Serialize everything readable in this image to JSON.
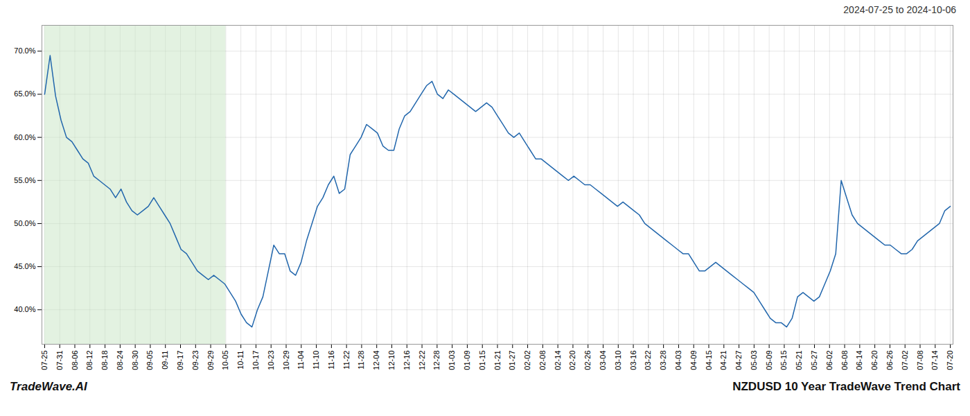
{
  "chart_data": {
    "type": "line",
    "title": "2024-07-25 to 2024-10-06",
    "annotations": [
      "TradeWave.AI",
      "NZDUSD 10 Year TradeWave Trend Chart"
    ],
    "x": [
      0,
      1,
      2,
      3,
      4,
      5,
      6,
      7,
      8,
      9,
      10,
      11,
      12,
      13,
      14,
      15,
      16,
      17,
      18,
      19,
      20,
      21,
      22,
      23,
      24,
      25,
      26,
      27,
      28,
      29,
      30,
      31,
      32,
      33,
      34,
      35,
      36,
      37,
      38,
      39,
      40,
      41,
      42,
      43,
      44,
      45,
      46,
      47,
      48,
      49,
      50,
      51,
      52,
      53,
      54,
      55,
      56,
      57,
      58,
      59,
      60,
      61,
      62,
      63,
      64,
      65,
      66,
      67,
      68,
      69,
      70,
      71,
      72,
      73,
      74,
      75,
      76,
      77,
      78,
      79,
      80,
      81,
      82,
      83,
      84,
      85,
      86,
      87,
      88,
      89,
      90,
      91,
      92,
      93,
      94,
      95,
      96,
      97,
      98,
      99,
      100,
      101,
      102,
      103,
      104,
      105,
      106,
      107,
      108,
      109,
      110,
      111,
      112,
      113,
      114,
      115,
      116,
      117,
      118,
      119,
      120,
      121,
      122,
      123,
      124,
      125,
      126,
      127,
      128,
      129,
      130,
      131,
      132,
      133,
      134,
      135,
      136,
      137,
      138,
      139,
      140,
      141,
      142,
      143,
      144,
      145,
      146,
      147,
      148,
      149,
      150,
      151,
      152,
      153,
      154,
      155,
      156,
      157,
      158,
      159,
      160,
      161,
      162,
      163,
      164,
      165,
      166
    ],
    "values": [
      65.0,
      69.5,
      64.8,
      62.0,
      60.0,
      59.5,
      58.5,
      57.5,
      57.0,
      55.5,
      55.0,
      54.5,
      54.0,
      53.0,
      54.0,
      52.5,
      51.5,
      51.0,
      51.5,
      52.0,
      53.0,
      52.0,
      51.0,
      50.0,
      48.5,
      47.0,
      46.5,
      45.5,
      44.5,
      44.0,
      43.5,
      44.0,
      43.5,
      43.0,
      42.0,
      41.0,
      39.5,
      38.5,
      38.0,
      40.0,
      41.5,
      44.5,
      47.5,
      46.5,
      46.5,
      44.5,
      44.0,
      45.5,
      48.0,
      50.0,
      52.0,
      53.0,
      54.5,
      55.5,
      53.5,
      54.0,
      58.0,
      59.0,
      60.0,
      61.5,
      61.0,
      60.5,
      59.0,
      58.5,
      58.5,
      61.0,
      62.5,
      63.0,
      64.0,
      65.0,
      66.0,
      66.5,
      65.0,
      64.5,
      65.5,
      65.0,
      64.5,
      64.0,
      63.5,
      63.0,
      63.5,
      64.0,
      63.5,
      62.5,
      61.5,
      60.5,
      60.0,
      60.5,
      59.5,
      58.5,
      57.5,
      57.5,
      57.0,
      56.5,
      56.0,
      55.5,
      55.0,
      55.5,
      55.0,
      54.5,
      54.5,
      54.0,
      53.5,
      53.0,
      52.5,
      52.0,
      52.5,
      52.0,
      51.5,
      51.0,
      50.0,
      49.5,
      49.0,
      48.5,
      48.0,
      47.5,
      47.0,
      46.5,
      46.5,
      45.5,
      44.5,
      44.5,
      45.0,
      45.5,
      45.0,
      44.5,
      44.0,
      43.5,
      43.0,
      42.5,
      42.0,
      41.0,
      40.0,
      39.0,
      38.5,
      38.5,
      38.0,
      39.0,
      41.5,
      42.0,
      41.5,
      41.0,
      41.5,
      43.0,
      44.5,
      46.5,
      55.0,
      53.0,
      51.0,
      50.0,
      49.5,
      49.0,
      48.5,
      48.0,
      47.5,
      47.5,
      47.0,
      46.5,
      46.5,
      47.0,
      48.0,
      48.5,
      49.0,
      49.5,
      50.0,
      51.5,
      52.0
    ],
    "color": "#2166ac",
    "shade": {
      "x": [
        0,
        33.2
      ],
      "color": "#c8e6c4"
    },
    "xlim": [
      -0.5,
      166.5
    ],
    "xticks": [
      {
        "value": 0,
        "label": "07-25"
      },
      {
        "value": 2.7667,
        "label": "07-31"
      },
      {
        "value": 5.5333,
        "label": "08-06"
      },
      {
        "value": 8.3,
        "label": "08-12"
      },
      {
        "value": 11.0667,
        "label": "08-18"
      },
      {
        "value": 13.8333,
        "label": "08-24"
      },
      {
        "value": 16.6,
        "label": "08-30"
      },
      {
        "value": 19.3667,
        "label": "09-05"
      },
      {
        "value": 22.1333,
        "label": "09-11"
      },
      {
        "value": 24.9,
        "label": "09-17"
      },
      {
        "value": 27.6667,
        "label": "09-23"
      },
      {
        "value": 30.4333,
        "label": "09-29"
      },
      {
        "value": 33.2,
        "label": "10-05"
      },
      {
        "value": 35.9667,
        "label": "10-11"
      },
      {
        "value": 38.7333,
        "label": "10-17"
      },
      {
        "value": 41.5,
        "label": "10-23"
      },
      {
        "value": 44.2667,
        "label": "10-29"
      },
      {
        "value": 47.0333,
        "label": "11-04"
      },
      {
        "value": 49.8,
        "label": "11-10"
      },
      {
        "value": 52.5667,
        "label": "11-16"
      },
      {
        "value": 55.3333,
        "label": "11-22"
      },
      {
        "value": 58.1,
        "label": "11-28"
      },
      {
        "value": 60.8667,
        "label": "12-04"
      },
      {
        "value": 63.6333,
        "label": "12-10"
      },
      {
        "value": 66.4,
        "label": "12-16"
      },
      {
        "value": 69.1667,
        "label": "12-22"
      },
      {
        "value": 71.9333,
        "label": "12-28"
      },
      {
        "value": 74.7,
        "label": "01-03"
      },
      {
        "value": 77.4667,
        "label": "01-09"
      },
      {
        "value": 80.2333,
        "label": "01-15"
      },
      {
        "value": 83,
        "label": "01-21"
      },
      {
        "value": 85.7667,
        "label": "01-27"
      },
      {
        "value": 88.5333,
        "label": "02-02"
      },
      {
        "value": 91.3,
        "label": "02-08"
      },
      {
        "value": 94.0667,
        "label": "02-14"
      },
      {
        "value": 96.8333,
        "label": "02-20"
      },
      {
        "value": 99.6,
        "label": "02-26"
      },
      {
        "value": 102.3667,
        "label": "03-04"
      },
      {
        "value": 105.1333,
        "label": "03-10"
      },
      {
        "value": 107.9,
        "label": "03-16"
      },
      {
        "value": 110.6667,
        "label": "03-22"
      },
      {
        "value": 113.4333,
        "label": "03-28"
      },
      {
        "value": 116.2,
        "label": "04-03"
      },
      {
        "value": 118.9667,
        "label": "04-09"
      },
      {
        "value": 121.7333,
        "label": "04-15"
      },
      {
        "value": 124.5,
        "label": "04-21"
      },
      {
        "value": 127.2667,
        "label": "04-27"
      },
      {
        "value": 130.0333,
        "label": "05-03"
      },
      {
        "value": 132.8,
        "label": "05-09"
      },
      {
        "value": 135.5667,
        "label": "05-15"
      },
      {
        "value": 138.3333,
        "label": "05-21"
      },
      {
        "value": 141.1,
        "label": "05-27"
      },
      {
        "value": 143.8667,
        "label": "06-02"
      },
      {
        "value": 146.6333,
        "label": "06-08"
      },
      {
        "value": 149.4,
        "label": "06-14"
      },
      {
        "value": 152.1667,
        "label": "06-20"
      },
      {
        "value": 154.9333,
        "label": "06-26"
      },
      {
        "value": 157.7,
        "label": "07-02"
      },
      {
        "value": 160.4667,
        "label": "07-08"
      },
      {
        "value": 163.2333,
        "label": "07-14"
      },
      {
        "value": 166,
        "label": "07-20"
      }
    ],
    "ylim": [
      36,
      73
    ],
    "yticks": [
      {
        "value": 40.0,
        "label": "40.0%"
      },
      {
        "value": 45.0,
        "label": "45.0%"
      },
      {
        "value": 50.0,
        "label": "50.0%"
      },
      {
        "value": 55.0,
        "label": "55.0%"
      },
      {
        "value": 60.0,
        "label": "60.0%"
      },
      {
        "value": 65.0,
        "label": "65.0%"
      },
      {
        "value": 70.0,
        "label": "70.0%"
      }
    ],
    "grid": true
  }
}
